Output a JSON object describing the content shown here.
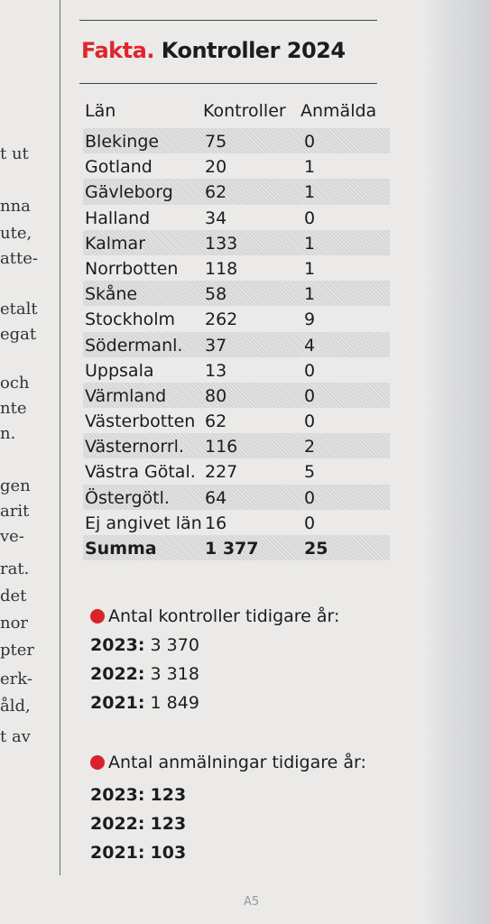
{
  "prev_column": [
    "t ut",
    "nna",
    "ute,",
    "atte-",
    "etalt",
    "egat",
    "och",
    "nte",
    "n.",
    "gen",
    "arit",
    "ve-",
    "rat.",
    "det",
    "nor",
    "pter",
    "erk-",
    "åld,",
    "t av"
  ],
  "heading": {
    "label": "Fakta.",
    "title": "Kontroller 2024"
  },
  "table": {
    "headers": [
      "Län",
      "Kontroller",
      "Anmälda"
    ],
    "rows": [
      [
        "Blekinge",
        "75",
        "0"
      ],
      [
        "Gotland",
        "20",
        "1"
      ],
      [
        "Gävleborg",
        "62",
        "1"
      ],
      [
        "Halland",
        "34",
        "0"
      ],
      [
        "Kalmar",
        "133",
        "1"
      ],
      [
        "Norrbotten",
        "118",
        "1"
      ],
      [
        "Skåne",
        "58",
        "1"
      ],
      [
        "Stockholm",
        "262",
        "9"
      ],
      [
        "Södermanl.",
        "37",
        "4"
      ],
      [
        "Uppsala",
        "13",
        "0"
      ],
      [
        "Värmland",
        "80",
        "0"
      ],
      [
        "Västerbotten",
        "62",
        "0"
      ],
      [
        "Västernorrl.",
        "116",
        "2"
      ],
      [
        "Västra Götal.",
        "227",
        "5"
      ],
      [
        "Östergötl.",
        "64",
        "0"
      ],
      [
        "Ej angivet län",
        "16",
        "0"
      ]
    ],
    "total": [
      "Summa",
      "1 377",
      "25"
    ]
  },
  "kontroller_earlier": {
    "heading": "Antal kontroller tidigare år:",
    "years": [
      {
        "year": "2023:",
        "value": "3 370"
      },
      {
        "year": "2022:",
        "value": "3 318"
      },
      {
        "year": "2021:",
        "value": "1 849"
      }
    ]
  },
  "anmalningar_earlier": {
    "heading": "Antal anmälningar tidigare år:",
    "years": [
      {
        "year": "2023:",
        "value": "123"
      },
      {
        "year": "2022:",
        "value": "123"
      },
      {
        "year": "2021:",
        "value": "103"
      }
    ]
  },
  "page_number": "A5",
  "colors": {
    "accent": "#e0252c",
    "dot": "#d8232a",
    "paper": "#ebeae8"
  }
}
